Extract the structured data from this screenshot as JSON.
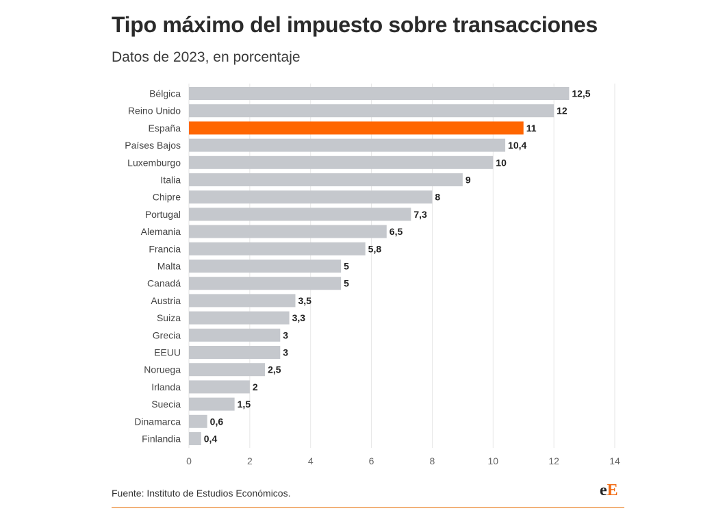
{
  "title": "Tipo máximo del impuesto sobre transacciones",
  "subtitle": "Datos de 2023, en porcentaje",
  "source": "Fuente: Instituto de Estudios Económicos.",
  "logo": {
    "part1": "e",
    "part2": "E"
  },
  "colors": {
    "bar": "#c5c8cd",
    "highlight": "#ff6600",
    "grid": "#e6e6e6",
    "label": "#444444",
    "value": "#222222"
  },
  "chart_data": {
    "type": "bar",
    "orientation": "horizontal",
    "categories": [
      "Bélgica",
      "Reino Unido",
      "España",
      "Países Bajos",
      "Luxemburgo",
      "Italia",
      "Chipre",
      "Portugal",
      "Alemania",
      "Francia",
      "Malta",
      "Canadá",
      "Austria",
      "Suiza",
      "Grecia",
      "EEUU",
      "Noruega",
      "Irlanda",
      "Suecia",
      "Dinamarca",
      "Finlandia"
    ],
    "values": [
      12.5,
      12,
      11,
      10.4,
      10,
      9,
      8,
      7.3,
      6.5,
      5.8,
      5,
      5,
      3.5,
      3.3,
      3,
      3,
      2.5,
      2,
      1.5,
      0.6,
      0.4
    ],
    "value_labels": [
      "12,5",
      "12",
      "11",
      "10,4",
      "10",
      "9",
      "8",
      "7,3",
      "6,5",
      "5,8",
      "5",
      "5",
      "3,5",
      "3,3",
      "3",
      "3",
      "2,5",
      "2",
      "1,5",
      "0,6",
      "0,4"
    ],
    "highlight_category": "España",
    "xlim": [
      0,
      14
    ],
    "xticks": [
      0,
      2,
      4,
      6,
      8,
      10,
      12,
      14
    ],
    "grid": true,
    "legend": "none"
  }
}
